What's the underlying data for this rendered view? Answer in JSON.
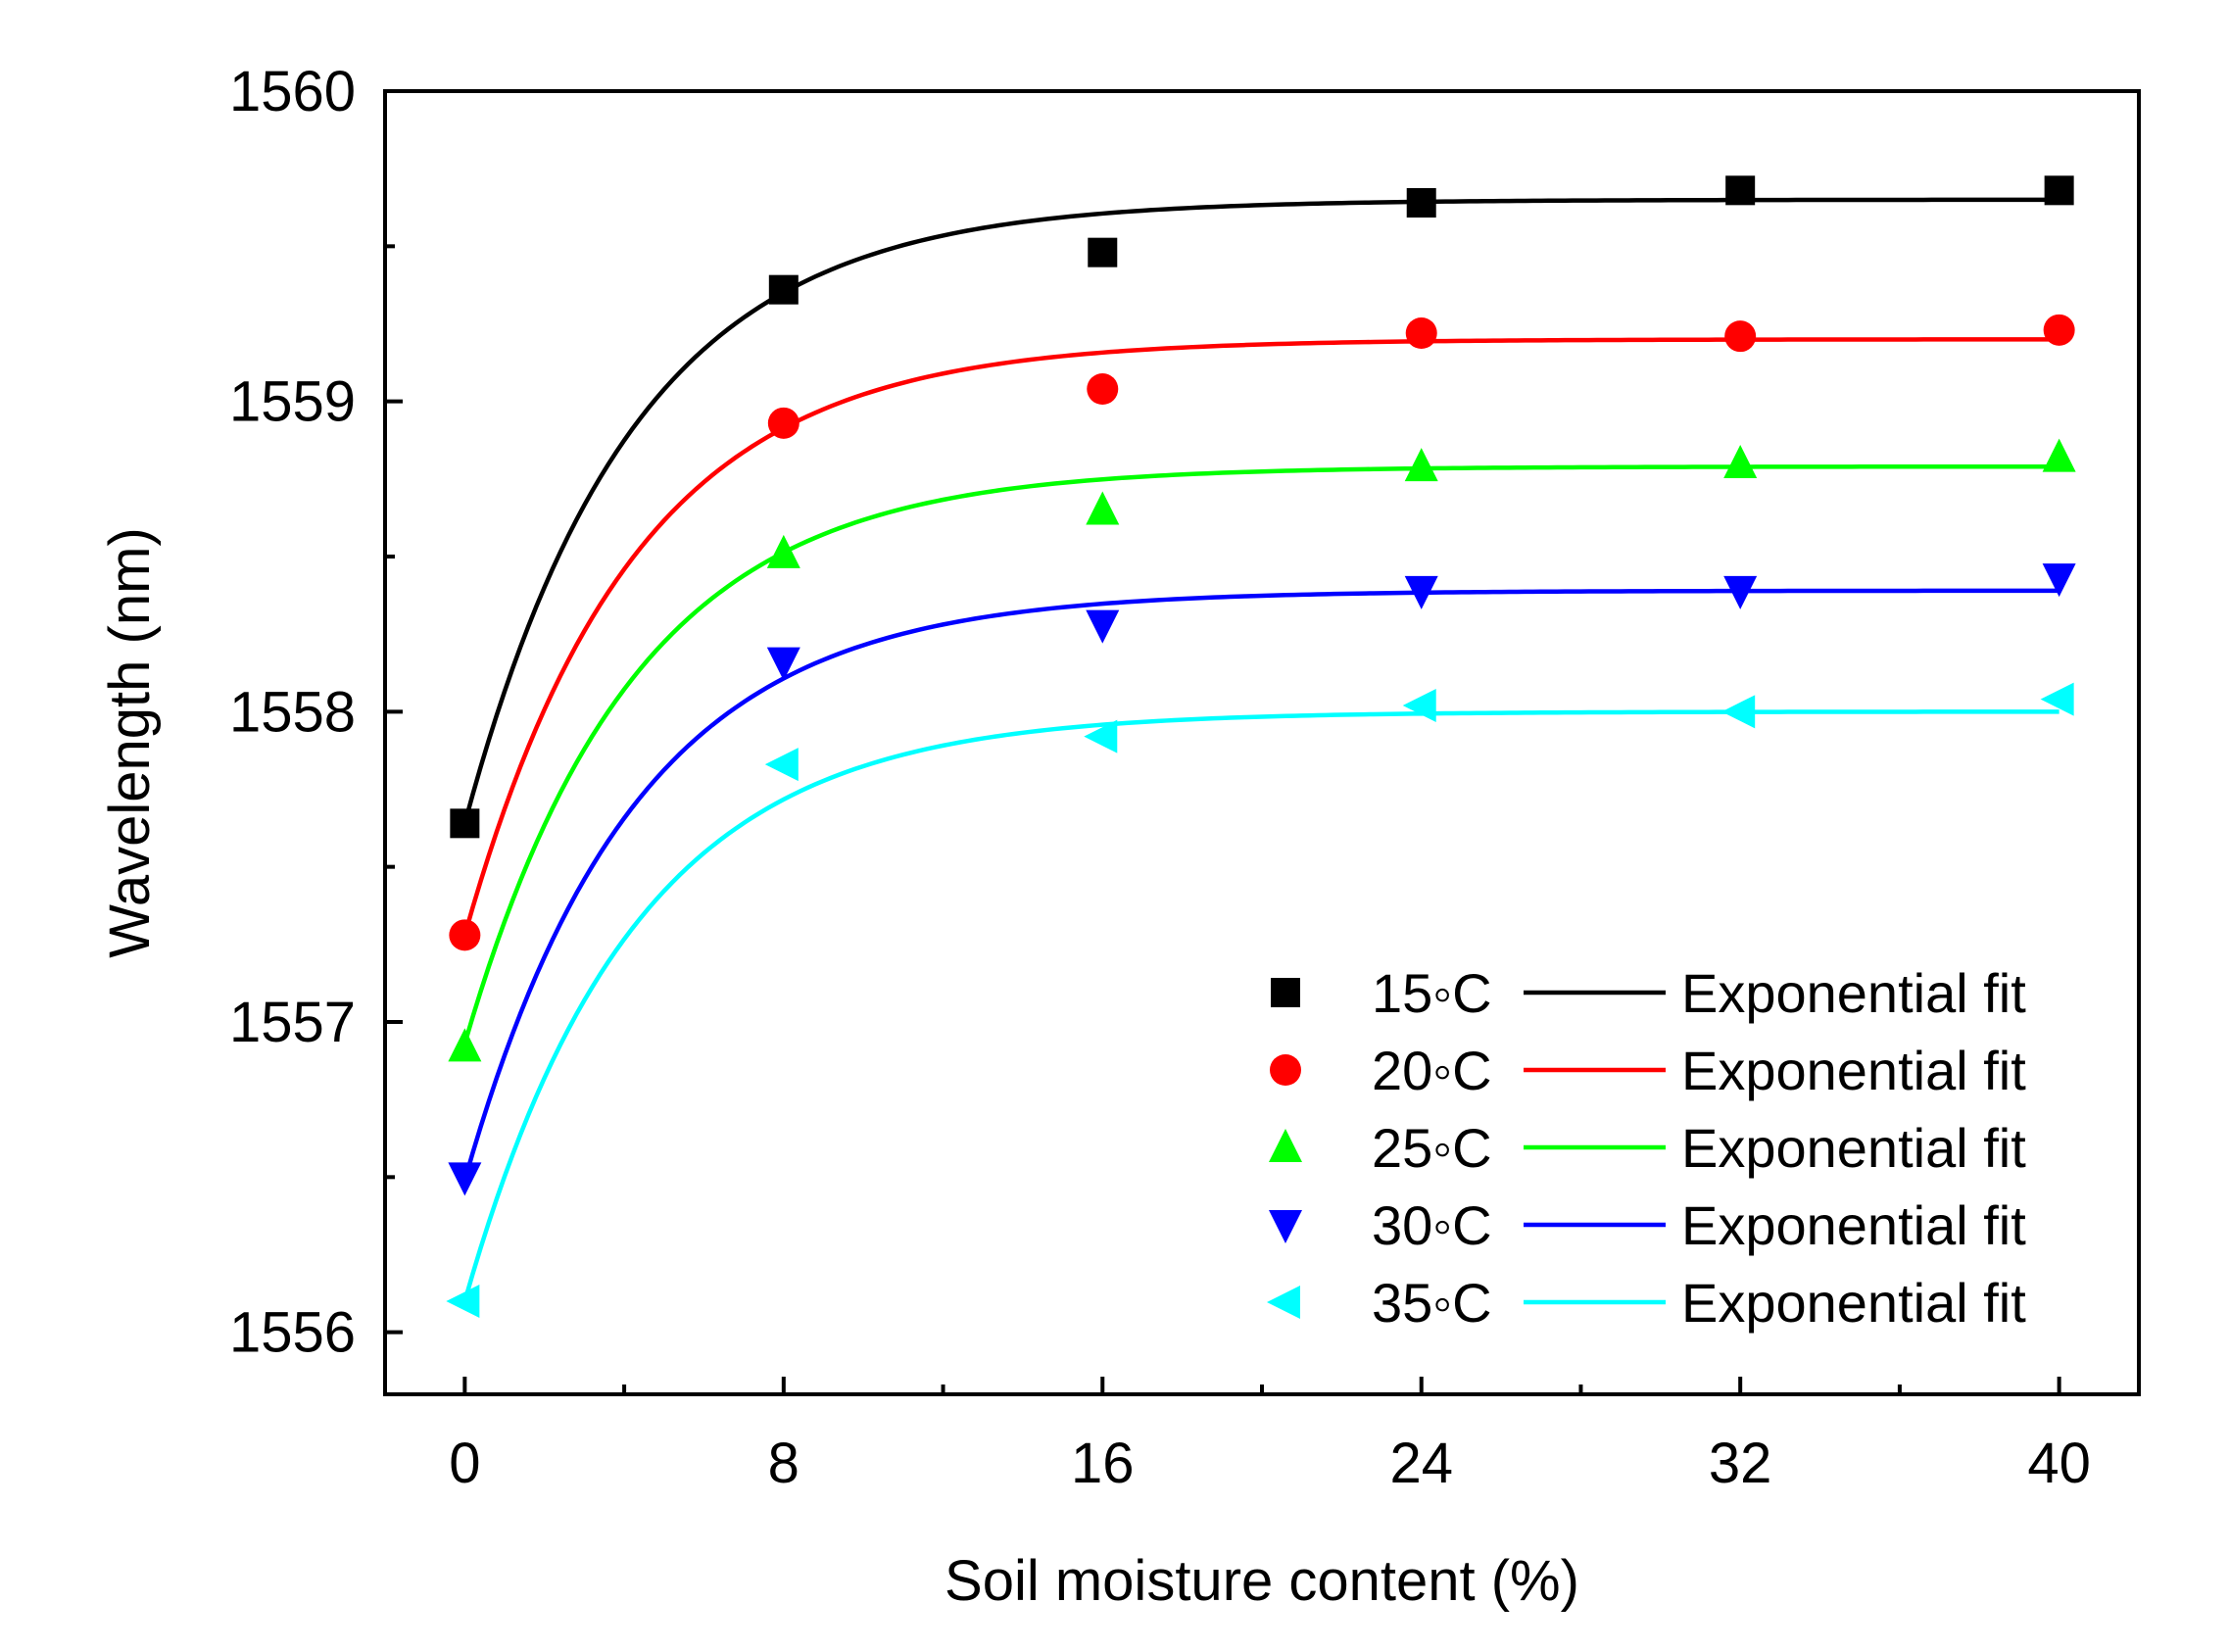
{
  "chart_data": {
    "type": "scatter",
    "title": "",
    "xlabel": "Soil moisture content (%)",
    "ylabel": "Wavelength (nm)",
    "xlim": [
      -2.0,
      42.0
    ],
    "ylim": [
      1555.8,
      1560.0
    ],
    "xticks": [
      0,
      8,
      16,
      24,
      32,
      40
    ],
    "yticks": [
      1556,
      1557,
      1558,
      1559,
      1560
    ],
    "x": [
      0,
      8,
      16,
      24,
      32,
      40
    ],
    "fit_label": "Exponential fit",
    "legend_position": "lower-right",
    "series": [
      {
        "name": "15◦C",
        "color": "#000000",
        "marker": "square",
        "values": [
          1557.64,
          1559.36,
          1559.48,
          1559.64,
          1559.68,
          1559.68
        ],
        "fit": {
          "asymptote": 1559.65,
          "amplitude": 2.01,
          "decay": 4.2
        }
      },
      {
        "name": "20◦C",
        "color": "#ff0000",
        "marker": "circle",
        "values": [
          1557.28,
          1558.93,
          1559.04,
          1559.22,
          1559.21,
          1559.23
        ],
        "fit": {
          "asymptote": 1559.2,
          "amplitude": 1.92,
          "decay": 4.2
        }
      },
      {
        "name": "25◦C",
        "color": "#00ff00",
        "marker": "triangle-up",
        "values": [
          1556.92,
          1558.51,
          1558.65,
          1558.79,
          1558.8,
          1558.82
        ],
        "fit": {
          "asymptote": 1558.79,
          "amplitude": 1.86,
          "decay": 4.2
        }
      },
      {
        "name": "30◦C",
        "color": "#0000ff",
        "marker": "triangle-down",
        "values": [
          1556.5,
          1558.16,
          1558.28,
          1558.39,
          1558.39,
          1558.43
        ],
        "fit": {
          "asymptote": 1558.39,
          "amplitude": 1.9,
          "decay": 4.2
        }
      },
      {
        "name": "35◦C",
        "color": "#00ffff",
        "marker": "triangle-left",
        "values": [
          1556.1,
          1557.83,
          1557.92,
          1558.02,
          1558.0,
          1558.04
        ],
        "fit": {
          "asymptote": 1558.0,
          "amplitude": 1.9,
          "decay": 4.2
        }
      }
    ]
  }
}
